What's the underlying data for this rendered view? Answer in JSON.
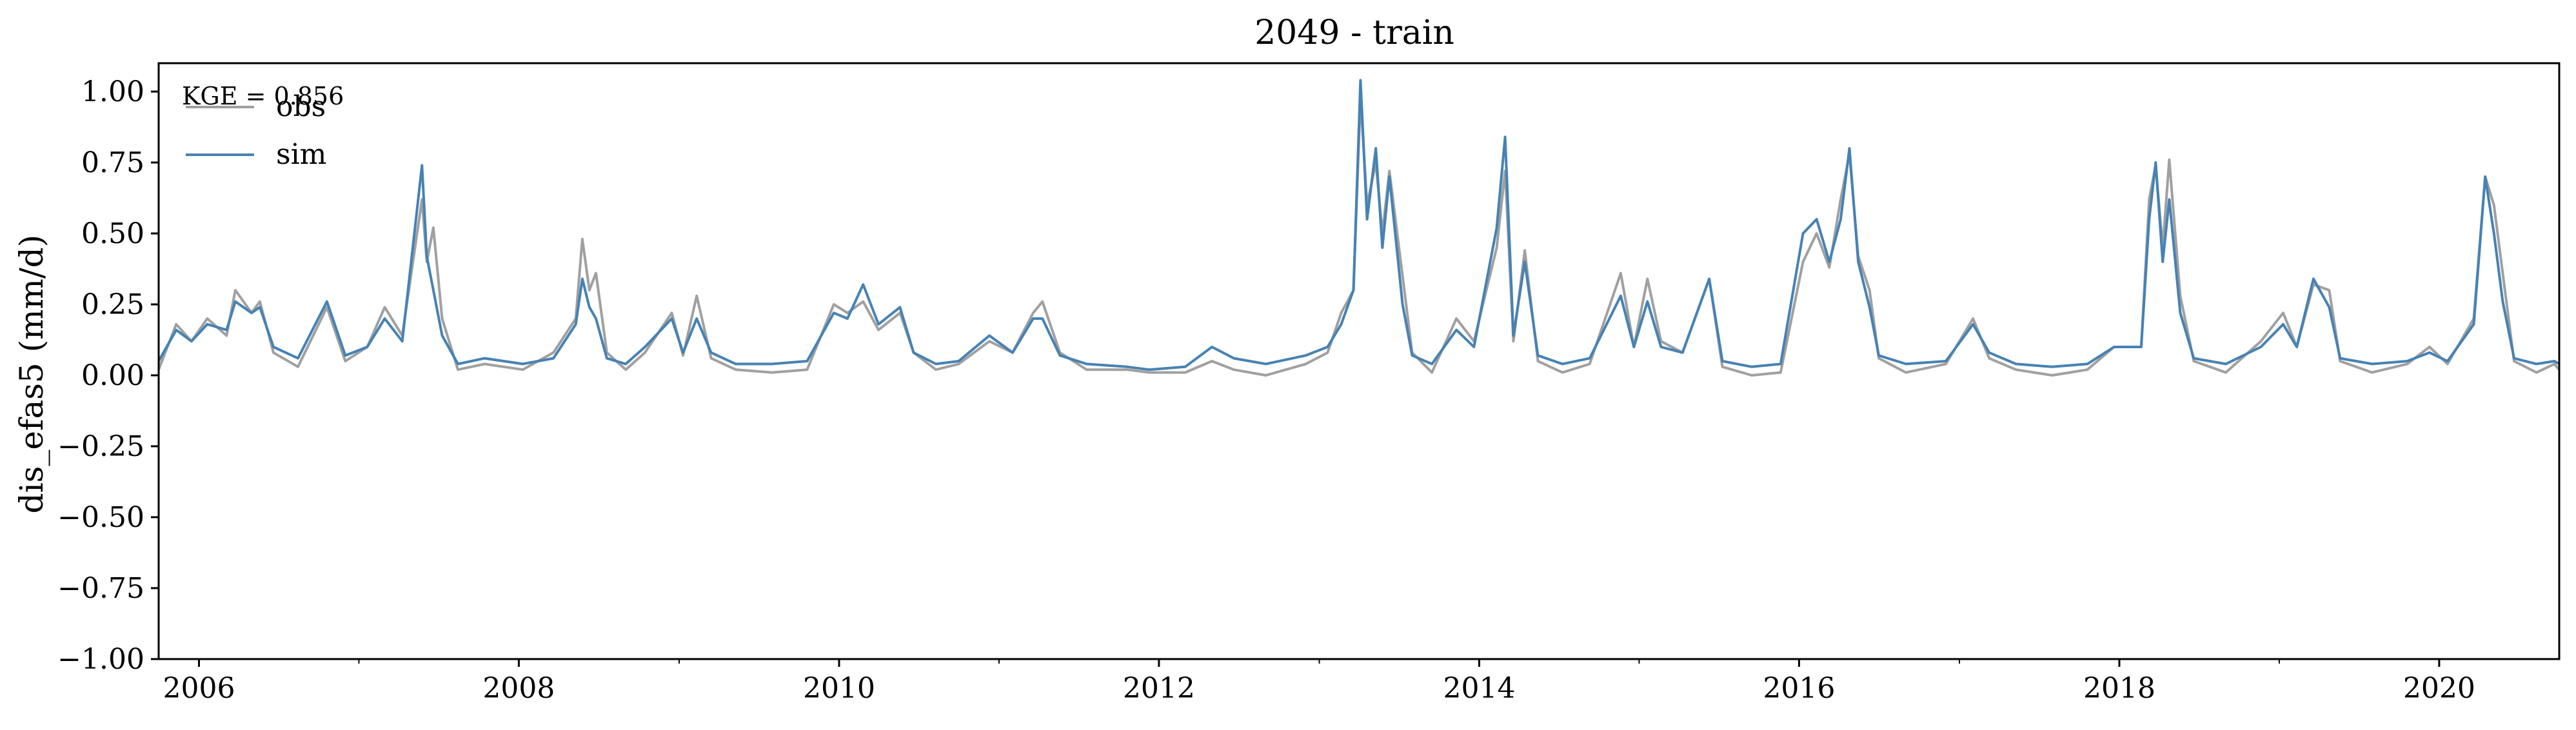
{
  "chart_data": {
    "type": "line",
    "title": "2049 - train",
    "xlabel": "",
    "ylabel": "dis_efas5 (mm/d)",
    "ylim": [
      -1.0,
      1.1
    ],
    "xlim": [
      "2005-10-01",
      "2020-10-01"
    ],
    "grid": false,
    "legend_placement": "upper-left",
    "annotation": "KGE = 0.856",
    "yticks": [
      1.0,
      0.75,
      0.5,
      0.25,
      0.0,
      -0.25,
      -0.5,
      -0.75,
      -1.0
    ],
    "ytick_labels": [
      "1.00",
      "0.75",
      "0.50",
      "0.25",
      "0.00",
      "−0.25",
      "−0.50",
      "−0.75",
      "−1.00"
    ],
    "xticks": [
      "2006-01-01",
      "2008-01-01",
      "2010-01-01",
      "2012-01-01",
      "2014-01-01",
      "2016-01-01",
      "2018-01-01",
      "2020-01-01"
    ],
    "xtick_labels": [
      "2006",
      "2008",
      "2010",
      "2012",
      "2014",
      "2016",
      "2018",
      "2020"
    ],
    "series": [
      {
        "name": "obs",
        "color": "#a0a0a0",
        "points": [
          [
            "2005-10-01",
            0.02
          ],
          [
            "2005-11-10",
            0.18
          ],
          [
            "2005-12-15",
            0.12
          ],
          [
            "2006-01-20",
            0.2
          ],
          [
            "2006-03-05",
            0.14
          ],
          [
            "2006-03-25",
            0.3
          ],
          [
            "2006-05-01",
            0.22
          ],
          [
            "2006-05-20",
            0.26
          ],
          [
            "2006-06-20",
            0.08
          ],
          [
            "2006-08-15",
            0.03
          ],
          [
            "2006-10-20",
            0.24
          ],
          [
            "2006-12-01",
            0.05
          ],
          [
            "2007-01-20",
            0.1
          ],
          [
            "2007-03-01",
            0.24
          ],
          [
            "2007-04-10",
            0.14
          ],
          [
            "2007-05-25",
            0.62
          ],
          [
            "2007-06-05",
            0.4
          ],
          [
            "2007-06-20",
            0.52
          ],
          [
            "2007-07-10",
            0.2
          ],
          [
            "2007-08-15",
            0.02
          ],
          [
            "2007-10-15",
            0.04
          ],
          [
            "2008-01-10",
            0.02
          ],
          [
            "2008-03-20",
            0.08
          ],
          [
            "2008-05-10",
            0.2
          ],
          [
            "2008-05-25",
            0.48
          ],
          [
            "2008-06-10",
            0.3
          ],
          [
            "2008-06-25",
            0.36
          ],
          [
            "2008-07-20",
            0.08
          ],
          [
            "2008-09-01",
            0.02
          ],
          [
            "2008-10-15",
            0.08
          ],
          [
            "2008-12-15",
            0.22
          ],
          [
            "2009-01-10",
            0.07
          ],
          [
            "2009-02-10",
            0.28
          ],
          [
            "2009-03-15",
            0.06
          ],
          [
            "2009-05-10",
            0.02
          ],
          [
            "2009-08-01",
            0.01
          ],
          [
            "2009-10-20",
            0.02
          ],
          [
            "2009-12-20",
            0.25
          ],
          [
            "2010-01-20",
            0.22
          ],
          [
            "2010-02-25",
            0.26
          ],
          [
            "2010-04-01",
            0.16
          ],
          [
            "2010-05-20",
            0.22
          ],
          [
            "2010-06-20",
            0.08
          ],
          [
            "2010-08-10",
            0.02
          ],
          [
            "2010-10-01",
            0.04
          ],
          [
            "2010-12-10",
            0.12
          ],
          [
            "2011-02-01",
            0.08
          ],
          [
            "2011-03-20",
            0.22
          ],
          [
            "2011-04-10",
            0.26
          ],
          [
            "2011-05-20",
            0.08
          ],
          [
            "2011-07-20",
            0.02
          ],
          [
            "2011-10-20",
            0.02
          ],
          [
            "2011-12-10",
            0.01
          ],
          [
            "2012-03-01",
            0.01
          ],
          [
            "2012-05-01",
            0.05
          ],
          [
            "2012-06-20",
            0.02
          ],
          [
            "2012-09-01",
            0.0
          ],
          [
            "2012-12-01",
            0.04
          ],
          [
            "2013-01-20",
            0.08
          ],
          [
            "2013-02-20",
            0.22
          ],
          [
            "2013-03-20",
            0.3
          ],
          [
            "2013-04-05",
            0.98
          ],
          [
            "2013-04-20",
            0.6
          ],
          [
            "2013-05-10",
            0.75
          ],
          [
            "2013-05-25",
            0.5
          ],
          [
            "2013-06-10",
            0.72
          ],
          [
            "2013-07-10",
            0.35
          ],
          [
            "2013-08-01",
            0.08
          ],
          [
            "2013-09-15",
            0.01
          ],
          [
            "2013-11-10",
            0.2
          ],
          [
            "2013-12-20",
            0.12
          ],
          [
            "2014-02-10",
            0.45
          ],
          [
            "2014-03-01",
            0.72
          ],
          [
            "2014-03-20",
            0.12
          ],
          [
            "2014-04-15",
            0.44
          ],
          [
            "2014-05-15",
            0.05
          ],
          [
            "2014-07-10",
            0.01
          ],
          [
            "2014-09-10",
            0.04
          ],
          [
            "2014-11-20",
            0.36
          ],
          [
            "2014-12-20",
            0.1
          ],
          [
            "2015-01-20",
            0.34
          ],
          [
            "2015-02-20",
            0.12
          ],
          [
            "2015-04-10",
            0.08
          ],
          [
            "2015-06-10",
            0.34
          ],
          [
            "2015-07-10",
            0.03
          ],
          [
            "2015-09-15",
            0.0
          ],
          [
            "2015-11-20",
            0.01
          ],
          [
            "2016-01-10",
            0.4
          ],
          [
            "2016-02-10",
            0.5
          ],
          [
            "2016-03-10",
            0.38
          ],
          [
            "2016-04-05",
            0.62
          ],
          [
            "2016-04-25",
            0.78
          ],
          [
            "2016-05-15",
            0.42
          ],
          [
            "2016-06-10",
            0.3
          ],
          [
            "2016-07-01",
            0.06
          ],
          [
            "2016-09-01",
            0.01
          ],
          [
            "2016-12-01",
            0.04
          ],
          [
            "2017-02-01",
            0.2
          ],
          [
            "2017-03-10",
            0.06
          ],
          [
            "2017-05-10",
            0.02
          ],
          [
            "2017-08-01",
            0.0
          ],
          [
            "2017-10-20",
            0.02
          ],
          [
            "2017-12-20",
            0.1
          ],
          [
            "2018-02-20",
            0.1
          ],
          [
            "2018-03-10",
            0.62
          ],
          [
            "2018-03-25",
            0.74
          ],
          [
            "2018-04-10",
            0.45
          ],
          [
            "2018-04-25",
            0.76
          ],
          [
            "2018-05-20",
            0.28
          ],
          [
            "2018-06-20",
            0.05
          ],
          [
            "2018-09-01",
            0.01
          ],
          [
            "2018-11-20",
            0.12
          ],
          [
            "2019-01-10",
            0.22
          ],
          [
            "2019-02-10",
            0.1
          ],
          [
            "2019-03-20",
            0.32
          ],
          [
            "2019-04-25",
            0.3
          ],
          [
            "2019-05-20",
            0.05
          ],
          [
            "2019-08-01",
            0.01
          ],
          [
            "2019-10-20",
            0.04
          ],
          [
            "2019-12-10",
            0.1
          ],
          [
            "2020-01-20",
            0.04
          ],
          [
            "2020-03-20",
            0.2
          ],
          [
            "2020-04-15",
            0.7
          ],
          [
            "2020-05-05",
            0.6
          ],
          [
            "2020-05-25",
            0.36
          ],
          [
            "2020-06-20",
            0.05
          ],
          [
            "2020-08-10",
            0.01
          ],
          [
            "2020-09-20",
            0.04
          ],
          [
            "2020-10-01",
            0.02
          ]
        ]
      },
      {
        "name": "sim",
        "color": "#4682b4",
        "points": [
          [
            "2005-10-01",
            0.05
          ],
          [
            "2005-11-10",
            0.16
          ],
          [
            "2005-12-15",
            0.12
          ],
          [
            "2006-01-20",
            0.18
          ],
          [
            "2006-03-05",
            0.16
          ],
          [
            "2006-03-25",
            0.26
          ],
          [
            "2006-05-01",
            0.22
          ],
          [
            "2006-05-20",
            0.24
          ],
          [
            "2006-06-20",
            0.1
          ],
          [
            "2006-08-15",
            0.06
          ],
          [
            "2006-10-20",
            0.26
          ],
          [
            "2006-12-01",
            0.07
          ],
          [
            "2007-01-20",
            0.1
          ],
          [
            "2007-03-01",
            0.2
          ],
          [
            "2007-04-10",
            0.12
          ],
          [
            "2007-05-25",
            0.74
          ],
          [
            "2007-06-05",
            0.42
          ],
          [
            "2007-06-20",
            0.3
          ],
          [
            "2007-07-10",
            0.14
          ],
          [
            "2007-08-15",
            0.04
          ],
          [
            "2007-10-15",
            0.06
          ],
          [
            "2008-01-10",
            0.04
          ],
          [
            "2008-03-20",
            0.06
          ],
          [
            "2008-05-10",
            0.18
          ],
          [
            "2008-05-25",
            0.34
          ],
          [
            "2008-06-10",
            0.24
          ],
          [
            "2008-06-25",
            0.2
          ],
          [
            "2008-07-20",
            0.06
          ],
          [
            "2008-09-01",
            0.04
          ],
          [
            "2008-10-15",
            0.1
          ],
          [
            "2008-12-15",
            0.2
          ],
          [
            "2009-01-10",
            0.08
          ],
          [
            "2009-02-10",
            0.2
          ],
          [
            "2009-03-15",
            0.08
          ],
          [
            "2009-05-10",
            0.04
          ],
          [
            "2009-08-01",
            0.04
          ],
          [
            "2009-10-20",
            0.05
          ],
          [
            "2009-12-20",
            0.22
          ],
          [
            "2010-01-20",
            0.2
          ],
          [
            "2010-02-25",
            0.32
          ],
          [
            "2010-04-01",
            0.18
          ],
          [
            "2010-05-20",
            0.24
          ],
          [
            "2010-06-20",
            0.08
          ],
          [
            "2010-08-10",
            0.04
          ],
          [
            "2010-10-01",
            0.05
          ],
          [
            "2010-12-10",
            0.14
          ],
          [
            "2011-02-01",
            0.08
          ],
          [
            "2011-03-20",
            0.2
          ],
          [
            "2011-04-10",
            0.2
          ],
          [
            "2011-05-20",
            0.07
          ],
          [
            "2011-07-20",
            0.04
          ],
          [
            "2011-10-20",
            0.03
          ],
          [
            "2011-12-10",
            0.02
          ],
          [
            "2012-03-01",
            0.03
          ],
          [
            "2012-05-01",
            0.1
          ],
          [
            "2012-06-20",
            0.06
          ],
          [
            "2012-09-01",
            0.04
          ],
          [
            "2012-12-01",
            0.07
          ],
          [
            "2013-01-20",
            0.1
          ],
          [
            "2013-02-20",
            0.18
          ],
          [
            "2013-03-20",
            0.3
          ],
          [
            "2013-04-05",
            1.04
          ],
          [
            "2013-04-20",
            0.55
          ],
          [
            "2013-05-10",
            0.8
          ],
          [
            "2013-05-25",
            0.45
          ],
          [
            "2013-06-10",
            0.7
          ],
          [
            "2013-07-10",
            0.25
          ],
          [
            "2013-08-01",
            0.07
          ],
          [
            "2013-09-15",
            0.04
          ],
          [
            "2013-11-10",
            0.16
          ],
          [
            "2013-12-20",
            0.1
          ],
          [
            "2014-02-10",
            0.52
          ],
          [
            "2014-03-01",
            0.84
          ],
          [
            "2014-03-20",
            0.14
          ],
          [
            "2014-04-15",
            0.4
          ],
          [
            "2014-05-15",
            0.07
          ],
          [
            "2014-07-10",
            0.04
          ],
          [
            "2014-09-10",
            0.06
          ],
          [
            "2014-11-20",
            0.28
          ],
          [
            "2014-12-20",
            0.1
          ],
          [
            "2015-01-20",
            0.26
          ],
          [
            "2015-02-20",
            0.1
          ],
          [
            "2015-04-10",
            0.08
          ],
          [
            "2015-06-10",
            0.34
          ],
          [
            "2015-07-10",
            0.05
          ],
          [
            "2015-09-15",
            0.03
          ],
          [
            "2015-11-20",
            0.04
          ],
          [
            "2016-01-10",
            0.5
          ],
          [
            "2016-02-10",
            0.55
          ],
          [
            "2016-03-10",
            0.4
          ],
          [
            "2016-04-05",
            0.55
          ],
          [
            "2016-04-25",
            0.8
          ],
          [
            "2016-05-15",
            0.4
          ],
          [
            "2016-06-10",
            0.24
          ],
          [
            "2016-07-01",
            0.07
          ],
          [
            "2016-09-01",
            0.04
          ],
          [
            "2016-12-01",
            0.05
          ],
          [
            "2017-02-01",
            0.18
          ],
          [
            "2017-03-10",
            0.08
          ],
          [
            "2017-05-10",
            0.04
          ],
          [
            "2017-08-01",
            0.03
          ],
          [
            "2017-10-20",
            0.04
          ],
          [
            "2017-12-20",
            0.1
          ],
          [
            "2018-02-20",
            0.1
          ],
          [
            "2018-03-10",
            0.55
          ],
          [
            "2018-03-25",
            0.75
          ],
          [
            "2018-04-10",
            0.4
          ],
          [
            "2018-04-25",
            0.62
          ],
          [
            "2018-05-20",
            0.22
          ],
          [
            "2018-06-20",
            0.06
          ],
          [
            "2018-09-01",
            0.04
          ],
          [
            "2018-11-20",
            0.1
          ],
          [
            "2019-01-10",
            0.18
          ],
          [
            "2019-02-10",
            0.1
          ],
          [
            "2019-03-20",
            0.34
          ],
          [
            "2019-04-25",
            0.24
          ],
          [
            "2019-05-20",
            0.06
          ],
          [
            "2019-08-01",
            0.04
          ],
          [
            "2019-10-20",
            0.05
          ],
          [
            "2019-12-10",
            0.08
          ],
          [
            "2020-01-20",
            0.05
          ],
          [
            "2020-03-20",
            0.18
          ],
          [
            "2020-04-15",
            0.7
          ],
          [
            "2020-05-05",
            0.5
          ],
          [
            "2020-05-25",
            0.26
          ],
          [
            "2020-06-20",
            0.06
          ],
          [
            "2020-08-10",
            0.04
          ],
          [
            "2020-09-20",
            0.05
          ],
          [
            "2020-10-01",
            0.04
          ]
        ]
      }
    ]
  }
}
